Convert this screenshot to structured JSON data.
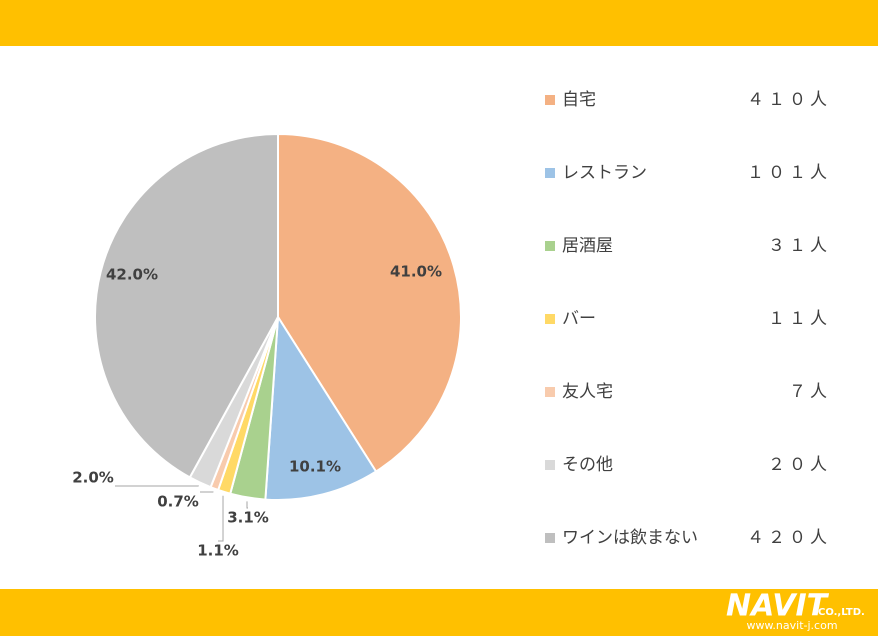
{
  "chart_data": {
    "type": "pie",
    "categories": [
      "自宅",
      "レストラン",
      "居酒屋",
      "バー",
      "友人宅",
      "その他",
      "ワインは飲まない"
    ],
    "values": [
      41.0,
      10.1,
      3.1,
      1.1,
      0.7,
      2.0,
      42.0
    ],
    "value_labels": [
      "41.0%",
      "10.1%",
      "3.1%",
      "1.1%",
      "0.7%",
      "2.0%",
      "42.0%"
    ],
    "colors": [
      "#f4b183",
      "#9dc3e6",
      "#a9d18e",
      "#ffd966",
      "#f8cbad",
      "#d9d9d9",
      "#bfbfbf"
    ],
    "counts": [
      410,
      101,
      31,
      11,
      7,
      20,
      420
    ],
    "count_labels": [
      "４１０人",
      "１０１人",
      "３１人",
      "１１人",
      "７人",
      "２０人",
      "４２０人"
    ],
    "legend": "right"
  },
  "logo": {
    "name": "NAVIT",
    "suffix": "CO.,LTD.",
    "url": "www.navit-j.com"
  }
}
